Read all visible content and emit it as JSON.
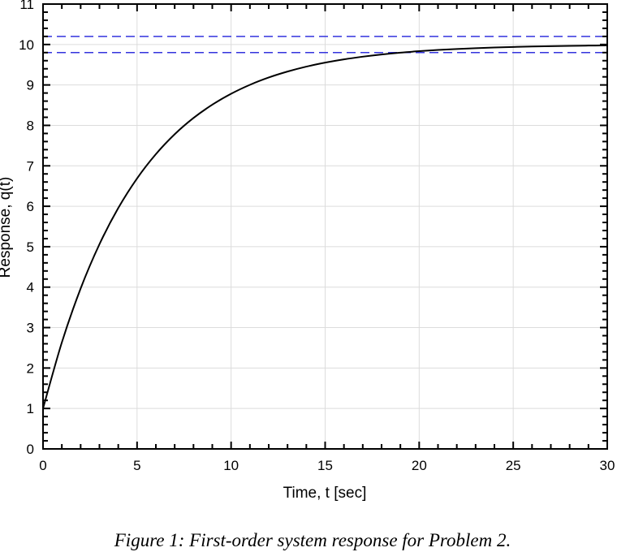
{
  "chart_data": {
    "type": "line",
    "xlabel": "Time, t [sec]",
    "ylabel": "Response, q(t)",
    "caption": "Figure 1: First-order system response for Problem 2.",
    "xlim": [
      0,
      30
    ],
    "ylim": [
      0,
      11
    ],
    "xticks": [
      0,
      5,
      10,
      15,
      20,
      25,
      30
    ],
    "yticks": [
      0,
      1,
      2,
      3,
      4,
      5,
      6,
      7,
      8,
      9,
      10,
      11
    ],
    "grid": true,
    "series": [
      {
        "color": "#000000",
        "style": "solid",
        "x": [
          0,
          1,
          2,
          3,
          4,
          5,
          6,
          7,
          8,
          9,
          10,
          11,
          12,
          13,
          14,
          15,
          16,
          17,
          18,
          19,
          20,
          21,
          22,
          23,
          24,
          25,
          26,
          27,
          28,
          29,
          30
        ],
        "y": [
          1,
          2.632,
          3.967,
          5.061,
          5.956,
          6.689,
          7.289,
          7.781,
          8.183,
          8.512,
          8.782,
          9.003,
          9.184,
          9.331,
          9.453,
          9.552,
          9.633,
          9.699,
          9.754,
          9.799,
          9.835,
          9.865,
          9.889,
          9.909,
          9.926,
          9.939,
          9.95,
          9.959,
          9.967,
          9.973,
          9.978
        ]
      }
    ],
    "reference_lines": [
      {
        "y": 10.2,
        "color": "#3333dd",
        "style": "dashed"
      },
      {
        "y": 9.8,
        "color": "#3333dd",
        "style": "dashed"
      }
    ]
  }
}
